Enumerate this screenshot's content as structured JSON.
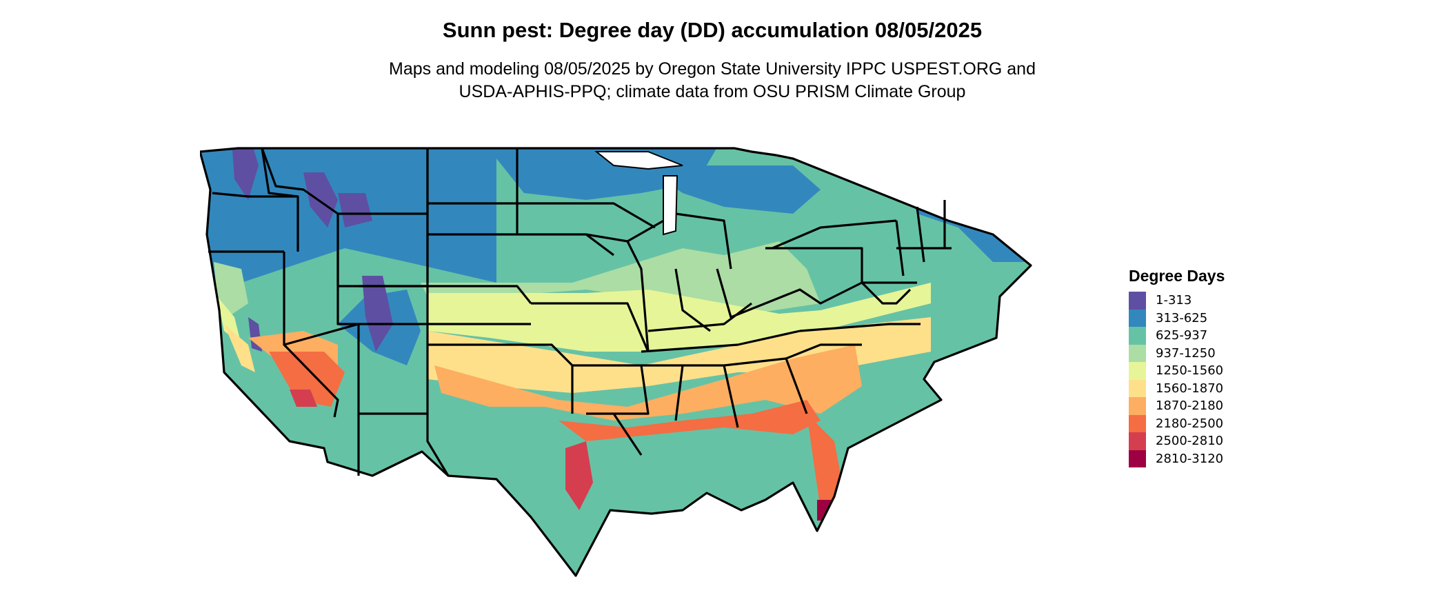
{
  "header": {
    "title": "Sunn pest: Degree day (DD) accumulation 08/05/2025",
    "subtitle_line1": "Maps and modeling 08/05/2025 by Oregon State University IPPC USPEST.ORG and",
    "subtitle_line2": "USDA-APHIS-PPQ; climate data from OSU PRISM Climate Group"
  },
  "legend": {
    "title": "Degree Days",
    "items": [
      {
        "label": "1-313",
        "color": "#5E4FA2"
      },
      {
        "label": "313-625",
        "color": "#3288BD"
      },
      {
        "label": "625-937",
        "color": "#66C2A5"
      },
      {
        "label": "937-1250",
        "color": "#ABDDA4"
      },
      {
        "label": "1250-1560",
        "color": "#E6F598"
      },
      {
        "label": "1560-1870",
        "color": "#FEE08B"
      },
      {
        "label": "1870-2180",
        "color": "#FDAE61"
      },
      {
        "label": "2180-2500",
        "color": "#F46D43"
      },
      {
        "label": "2500-2810",
        "color": "#D53E4F"
      },
      {
        "label": "2810-3120",
        "color": "#9E0142"
      }
    ]
  }
}
